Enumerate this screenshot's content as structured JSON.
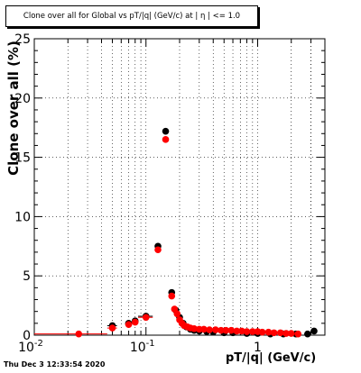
{
  "header": {
    "title": "Clone  over all for Global vs pT/|q| (GeV/c) at | η | <= 1.0"
  },
  "footer": {
    "timestamp": "Thu Dec  3 12:33:54 2020"
  },
  "colors": {
    "series_black": "#000000",
    "series_red": "#ff0000",
    "grid": "#000000"
  },
  "chart_data": {
    "type": "scatter",
    "title": "Clone  over all for Global vs pT/|q| (GeV/c) at | η | <= 1.0",
    "xlabel": "pT/|q| (GeV/c)",
    "ylabel": "Clone  over all (%)",
    "x_scale": "log",
    "xlim": [
      0.01,
      4
    ],
    "ylim": [
      0,
      25
    ],
    "x_ticks": [
      {
        "value": 0.01,
        "label": "10^-2"
      },
      {
        "value": 0.1,
        "label": "10^-1"
      },
      {
        "value": 1,
        "label": "1"
      }
    ],
    "y_ticks": [
      {
        "value": 0,
        "label": "0"
      },
      {
        "value": 5,
        "label": "5"
      },
      {
        "value": 10,
        "label": "10"
      },
      {
        "value": 15,
        "label": "15"
      },
      {
        "value": 20,
        "label": "20"
      },
      {
        "value": 25,
        "label": "25"
      }
    ],
    "grid": true,
    "series": [
      {
        "color": "#000000",
        "points": [
          {
            "x": 0.05,
            "y": 0.8,
            "xerr": [
              0.045,
              0.055
            ]
          },
          {
            "x": 0.07,
            "y": 1.0,
            "xerr": [
              0.065,
              0.075
            ]
          },
          {
            "x": 0.08,
            "y": 1.2,
            "xerr": [
              0.075,
              0.085
            ]
          },
          {
            "x": 0.1,
            "y": 1.6,
            "xerr": [
              0.085,
              0.115
            ]
          },
          {
            "x": 0.128,
            "y": 7.5
          },
          {
            "x": 0.15,
            "y": 17.2
          },
          {
            "x": 0.17,
            "y": 3.6
          },
          {
            "x": 0.185,
            "y": 2.1
          },
          {
            "x": 0.2,
            "y": 1.5
          },
          {
            "x": 0.215,
            "y": 1.0
          },
          {
            "x": 0.23,
            "y": 0.7
          },
          {
            "x": 0.25,
            "y": 0.5
          },
          {
            "x": 0.27,
            "y": 0.4
          },
          {
            "x": 0.3,
            "y": 0.35
          },
          {
            "x": 0.35,
            "y": 0.3
          },
          {
            "x": 0.4,
            "y": 0.25
          },
          {
            "x": 0.5,
            "y": 0.2
          },
          {
            "x": 0.6,
            "y": 0.2
          },
          {
            "x": 0.8,
            "y": 0.15
          },
          {
            "x": 1.0,
            "y": 0.15
          },
          {
            "x": 1.3,
            "y": 0.1
          },
          {
            "x": 1.7,
            "y": 0.1
          },
          {
            "x": 2.2,
            "y": 0.1
          },
          {
            "x": 2.8,
            "y": 0.1
          },
          {
            "x": 3.2,
            "y": 0.35
          }
        ]
      },
      {
        "color": "#ff0000",
        "points": [
          {
            "x": 0.025,
            "y": 0.1,
            "xerr": [
              0.01,
              0.045
            ]
          },
          {
            "x": 0.05,
            "y": 0.6,
            "xerr": [
              0.045,
              0.055
            ]
          },
          {
            "x": 0.07,
            "y": 0.9,
            "xerr": [
              0.065,
              0.075
            ]
          },
          {
            "x": 0.08,
            "y": 1.1,
            "xerr": [
              0.075,
              0.085
            ]
          },
          {
            "x": 0.1,
            "y": 1.5,
            "xerr": [
              0.085,
              0.115
            ]
          },
          {
            "x": 0.128,
            "y": 7.2
          },
          {
            "x": 0.15,
            "y": 16.5
          },
          {
            "x": 0.17,
            "y": 3.3
          },
          {
            "x": 0.18,
            "y": 2.2
          },
          {
            "x": 0.19,
            "y": 1.8
          },
          {
            "x": 0.2,
            "y": 1.3
          },
          {
            "x": 0.21,
            "y": 1.0
          },
          {
            "x": 0.22,
            "y": 0.8
          },
          {
            "x": 0.235,
            "y": 0.7
          },
          {
            "x": 0.25,
            "y": 0.6
          },
          {
            "x": 0.27,
            "y": 0.55
          },
          {
            "x": 0.3,
            "y": 0.5
          },
          {
            "x": 0.33,
            "y": 0.5
          },
          {
            "x": 0.37,
            "y": 0.45
          },
          {
            "x": 0.42,
            "y": 0.45
          },
          {
            "x": 0.47,
            "y": 0.4
          },
          {
            "x": 0.52,
            "y": 0.4
          },
          {
            "x": 0.58,
            "y": 0.4
          },
          {
            "x": 0.65,
            "y": 0.35
          },
          {
            "x": 0.72,
            "y": 0.35
          },
          {
            "x": 0.8,
            "y": 0.3
          },
          {
            "x": 0.9,
            "y": 0.3
          },
          {
            "x": 1.0,
            "y": 0.3
          },
          {
            "x": 1.1,
            "y": 0.25
          },
          {
            "x": 1.25,
            "y": 0.25
          },
          {
            "x": 1.4,
            "y": 0.2
          },
          {
            "x": 1.6,
            "y": 0.2
          },
          {
            "x": 1.8,
            "y": 0.15
          },
          {
            "x": 2.0,
            "y": 0.15
          },
          {
            "x": 2.3,
            "y": 0.1
          }
        ]
      }
    ]
  }
}
